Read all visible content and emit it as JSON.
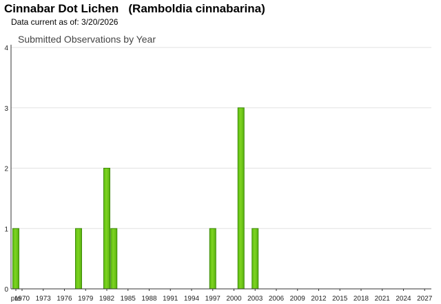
{
  "header": {
    "title": "Cinnabar Dot Lichen   (Ramboldia cinnabarina)",
    "subtitle": "Data current as of: 3/20/2026"
  },
  "chart_data": {
    "type": "bar",
    "title": "Submitted Observations by Year",
    "xlabel": "",
    "ylabel": "",
    "ylim": [
      0,
      4
    ],
    "y_ticks": [
      0,
      1,
      2,
      3,
      4
    ],
    "grid": true,
    "bar_color": "#7ed321",
    "x_tick_labels": [
      "pre",
      "1970",
      "1973",
      "1976",
      "1979",
      "1982",
      "1985",
      "1988",
      "1991",
      "1994",
      "1997",
      "2000",
      "2003",
      "2006",
      "2009",
      "2012",
      "2015",
      "2018",
      "2021",
      "2024",
      "2027"
    ],
    "categories": [
      "pre",
      "1978",
      "1982",
      "1983",
      "1997",
      "2001",
      "2003"
    ],
    "values": [
      1,
      1,
      2,
      1,
      1,
      3,
      1
    ]
  }
}
